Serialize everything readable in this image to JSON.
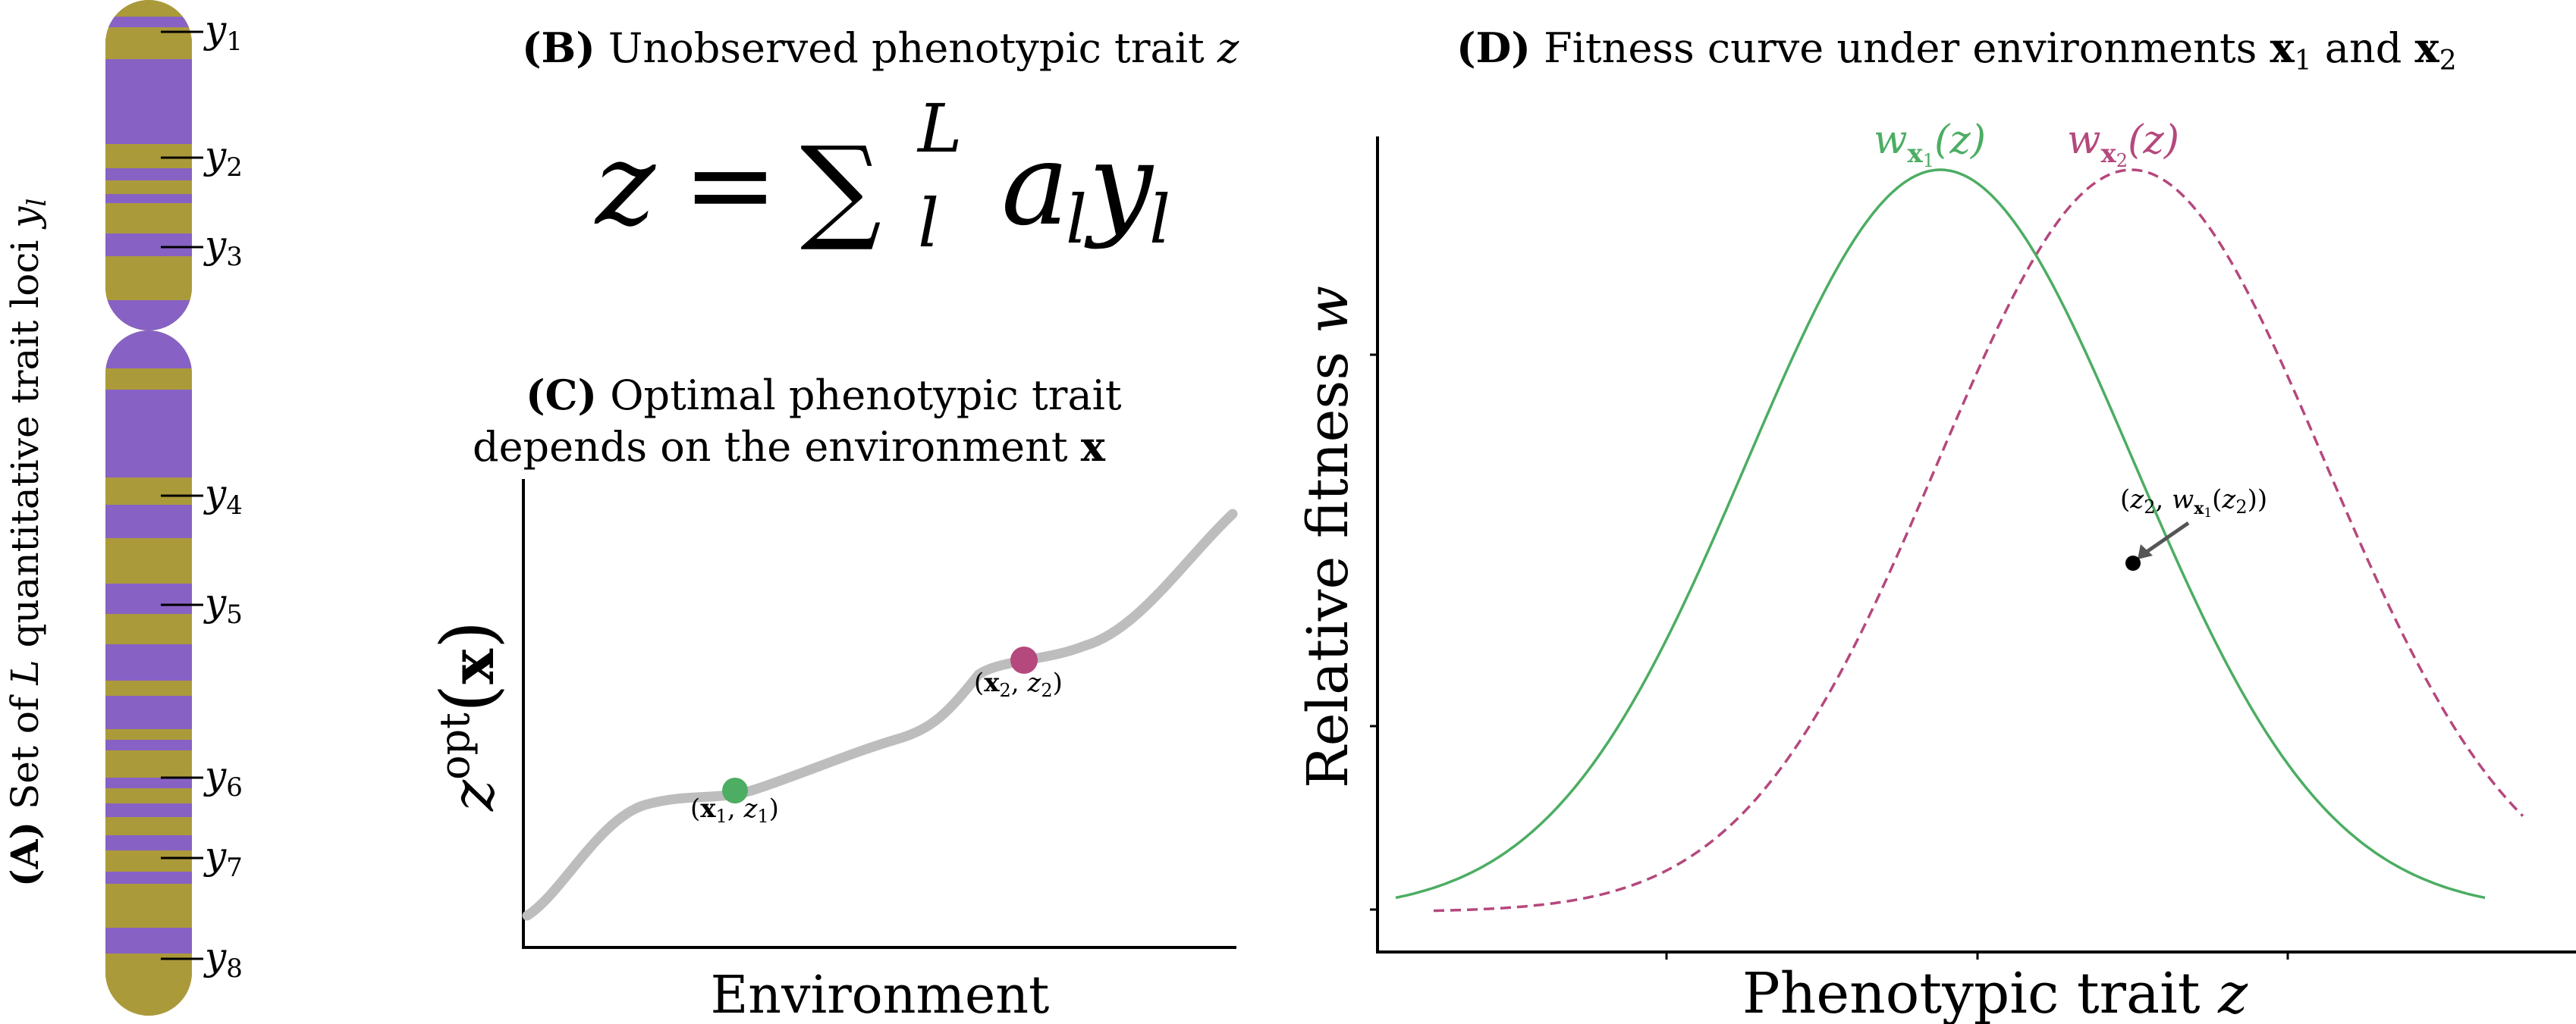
{
  "colors": {
    "chrom_gold": "#ab9a3a",
    "chrom_purple": "#8762c4",
    "green": "#4cad63",
    "magenta": "#b5487d",
    "grey_curve": "#bdbdbd",
    "axis": "#000000",
    "arrow": "#555555"
  },
  "panel_a": {
    "tag": "(A)",
    "label_text": "Set of ",
    "label_var": "L",
    "label_text2": " quantitative trait loci ",
    "label_var2": "y",
    "label_sub2": "l",
    "loci": [
      {
        "var": "y",
        "sub": "1"
      },
      {
        "var": "y",
        "sub": "2"
      },
      {
        "var": "y",
        "sub": "3"
      },
      {
        "var": "y",
        "sub": "4"
      },
      {
        "var": "y",
        "sub": "5"
      },
      {
        "var": "y",
        "sub": "6"
      },
      {
        "var": "y",
        "sub": "7"
      },
      {
        "var": "y",
        "sub": "8"
      }
    ]
  },
  "panel_b": {
    "tag": "(B)",
    "title_text": "Unobserved phenotypic trait ",
    "title_var": "z",
    "equation": {
      "lhs": "z",
      "eq": "=",
      "sum": "∑",
      "sum_sup": "L",
      "sum_sub": "l",
      "term_a": "a",
      "term_a_sub": "l",
      "term_y": "y",
      "term_y_sub": "l"
    }
  },
  "panel_c": {
    "tag": "(C)",
    "title_line1": "Optimal phenotypic trait",
    "title_line2_text": "depends on the environment ",
    "title_line2_bold": "x",
    "ylabel_var": "z",
    "ylabel_sup": "opt",
    "ylabel_paren_open": "(",
    "ylabel_bold": "x",
    "ylabel_paren_close": ")",
    "xlabel": "Environment",
    "point1": {
      "open": "(",
      "bold": "x",
      "sub": "1",
      "mid": ", ",
      "var": "z",
      "sub2": "1",
      "close": ")"
    },
    "point2": {
      "open": "(",
      "bold": "x",
      "sub": "2",
      "mid": ", ",
      "var": "z",
      "sub2": "2",
      "close": ")"
    }
  },
  "panel_d": {
    "tag": "(D)",
    "title_text": "Fitness curve under environments ",
    "title_bold1": "x",
    "title_sub1": "1",
    "title_and": " and ",
    "title_bold2": "x",
    "title_sub2": "2",
    "ylabel_text": "Relative fitness ",
    "ylabel_var": "w",
    "xlabel_text": "Phenotypic trait ",
    "xlabel_var": "z",
    "curve1_label": {
      "var": "w",
      "sub_bold": "x",
      "sub_num": "1",
      "arg": "(z)"
    },
    "curve2_label": {
      "var": "w",
      "sub_bold": "x",
      "sub_num": "2",
      "arg": "(z)"
    },
    "annotation": {
      "open": "(",
      "z": "z",
      "zsub": "2",
      "comma": ", ",
      "w": "w",
      "wsub_bold": "x",
      "wsub_num": "1",
      "inner_open": "(",
      "z2": "z",
      "z2sub": "2",
      "inner_close": ")",
      "close": ")"
    }
  }
}
